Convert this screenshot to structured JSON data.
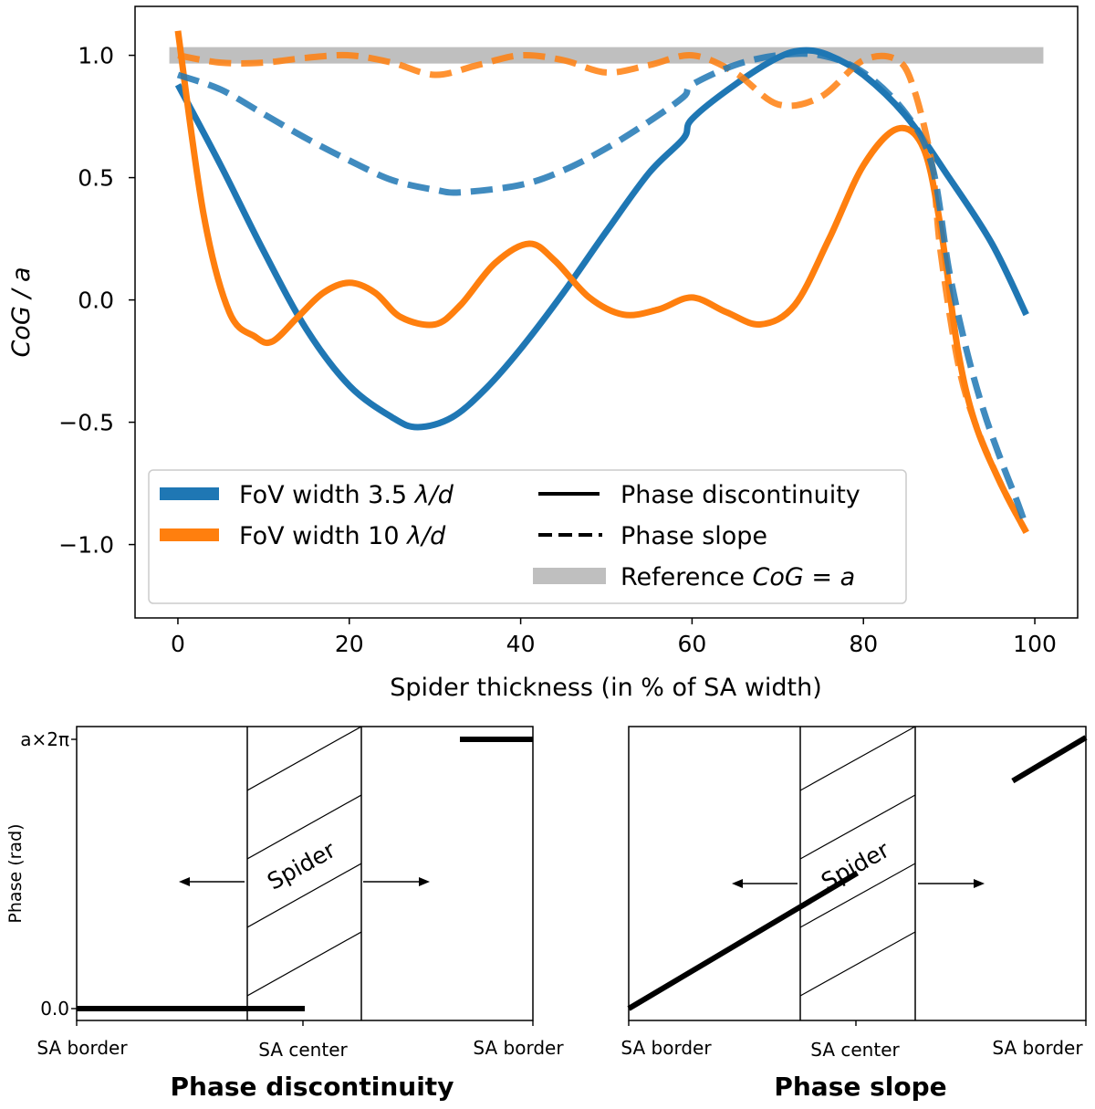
{
  "chart_data": [
    {
      "type": "line",
      "title": "",
      "xlabel": "Spider thickness (in % of SA width)",
      "ylabel": "CoG / a",
      "xlim": [
        -5,
        105
      ],
      "ylim": [
        -1.3,
        1.2
      ],
      "xticks": [
        0,
        20,
        40,
        60,
        80,
        100
      ],
      "xtick_labels": [
        "0",
        "20",
        "40",
        "60",
        "80",
        "100"
      ],
      "yticks": [
        -1.0,
        -0.5,
        0.0,
        0.5,
        1.0
      ],
      "ytick_labels": [
        "−1.0",
        "−0.5",
        "0.0",
        "0.5",
        "1.0"
      ],
      "grid": false,
      "legend_position": "lower-left",
      "legend": {
        "colors": [
          {
            "label_prefix": "FoV width 3.5 ",
            "label_math": "λ/d",
            "color": "#1f77b4"
          },
          {
            "label_prefix": "FoV width 10 ",
            "label_math": "λ/d",
            "color": "#ff7f0e"
          }
        ],
        "styles": [
          {
            "label": "Phase discontinuity",
            "style": "solid"
          },
          {
            "label": "Phase slope",
            "style": "dashed"
          }
        ],
        "reference": {
          "label_prefix": "Reference ",
          "label_math": "CoG = a",
          "color": "#bfbfbf"
        }
      },
      "reference": {
        "x": [
          -1,
          101
        ],
        "y": 1.0,
        "color": "#bfbfbf"
      },
      "series": [
        {
          "name": "FoV width 3.5 λ/d – Phase discontinuity",
          "color": "#1f77b4",
          "style": "solid",
          "x": [
            0,
            5,
            10,
            15,
            20,
            25,
            28,
            32,
            36,
            40,
            45,
            50,
            55,
            59,
            60,
            65,
            70,
            73,
            76,
            80,
            85,
            90,
            95,
            99
          ],
          "y": [
            0.88,
            0.55,
            0.2,
            -0.12,
            -0.35,
            -0.48,
            -0.52,
            -0.48,
            -0.36,
            -0.2,
            0.03,
            0.28,
            0.52,
            0.66,
            0.74,
            0.88,
            0.99,
            1.02,
            1.0,
            0.92,
            0.75,
            0.5,
            0.23,
            -0.06
          ]
        },
        {
          "name": "FoV width 3.5 λ/d – Phase slope",
          "color": "#1f77b4",
          "style": "dashed",
          "x": [
            0,
            5,
            10,
            15,
            20,
            25,
            30,
            33,
            40,
            45,
            50,
            55,
            59,
            60,
            65,
            70,
            75,
            80,
            85,
            88,
            90,
            92,
            94,
            96,
            98,
            99
          ],
          "y": [
            0.92,
            0.86,
            0.76,
            0.66,
            0.57,
            0.49,
            0.45,
            0.44,
            0.47,
            0.53,
            0.62,
            0.73,
            0.83,
            0.88,
            0.96,
            1.0,
            1.0,
            0.93,
            0.76,
            0.55,
            0.12,
            -0.2,
            -0.45,
            -0.65,
            -0.83,
            -0.93
          ]
        },
        {
          "name": "FoV width 10 λ/d – Phase discontinuity",
          "color": "#ff7f0e",
          "style": "solid",
          "x": [
            0,
            3,
            6,
            9,
            11,
            14,
            17,
            20,
            23,
            26,
            30,
            33,
            37,
            41,
            44,
            48,
            52,
            56,
            60,
            64,
            68,
            72,
            76,
            80,
            84,
            87,
            89,
            91,
            93,
            96,
            99
          ],
          "y": [
            1.1,
            0.35,
            -0.05,
            -0.15,
            -0.17,
            -0.07,
            0.03,
            0.07,
            0.03,
            -0.07,
            -0.1,
            -0.02,
            0.15,
            0.23,
            0.16,
            0.01,
            -0.06,
            -0.04,
            0.01,
            -0.05,
            -0.1,
            -0.02,
            0.25,
            0.55,
            0.7,
            0.62,
            0.3,
            -0.2,
            -0.5,
            -0.75,
            -0.95
          ]
        },
        {
          "name": "FoV width 10 λ/d – Phase slope",
          "color": "#ff7f0e",
          "style": "dashed",
          "x": [
            0,
            5,
            10,
            15,
            20,
            25,
            30,
            35,
            40,
            45,
            50,
            55,
            60,
            65,
            70,
            75,
            80,
            84,
            86,
            88,
            89,
            91,
            93,
            96,
            99
          ],
          "y": [
            1.0,
            0.97,
            0.97,
            0.99,
            1.0,
            0.97,
            0.92,
            0.96,
            1.0,
            0.98,
            0.93,
            0.96,
            1.0,
            0.93,
            0.8,
            0.83,
            0.98,
            0.98,
            0.85,
            0.55,
            0.2,
            -0.25,
            -0.5,
            -0.75,
            -0.95
          ]
        }
      ]
    },
    {
      "type": "diagram",
      "title": "Phase discontinuity",
      "ylabel": "Phase (rad)",
      "y_tick_top": "a×2π",
      "y_tick_bottom": "0.0",
      "x_labels": [
        "SA border",
        "SA center",
        "SA border"
      ],
      "spider_label": "Spider",
      "phase_profile": [
        {
          "x": [
            0,
            0.5
          ],
          "y": [
            0,
            0
          ]
        },
        {
          "x": [
            0.84,
            1.0
          ],
          "y": [
            1,
            1
          ]
        }
      ]
    },
    {
      "type": "diagram",
      "title": "Phase slope",
      "x_labels": [
        "SA border",
        "SA center",
        "SA border"
      ],
      "spider_label": "Spider",
      "phase_profile": [
        {
          "x": [
            0,
            0.5
          ],
          "y": [
            0,
            0.5
          ]
        },
        {
          "x": [
            0.84,
            1.0
          ],
          "y": [
            0.84,
            1.0
          ]
        }
      ]
    }
  ]
}
